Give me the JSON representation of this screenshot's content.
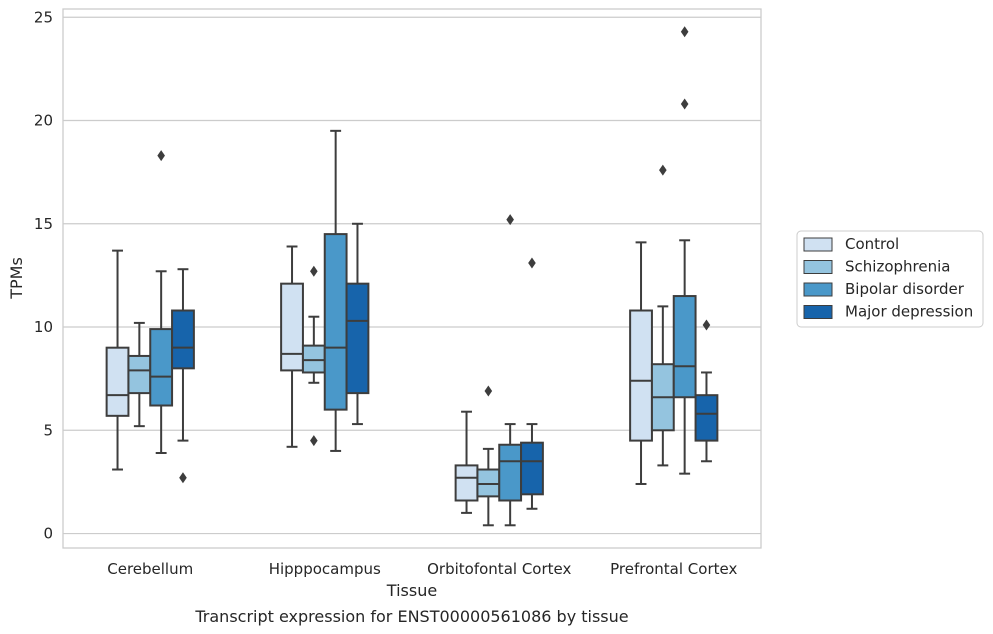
{
  "caption": "Transcript expression for ENST00000561086 by tissue",
  "chart_data": {
    "type": "box",
    "xlabel": "Tissue",
    "ylabel": "TPMs",
    "ylim": [
      -0.7,
      25.4
    ],
    "yticks": [
      0,
      5,
      10,
      15,
      20,
      25
    ],
    "grid": "horizontal",
    "legend_position": "right",
    "categories": [
      "Cerebellum",
      "Hipppocampus",
      "Orbitofontal Cortex",
      "Prefrontal Cortex"
    ],
    "series": [
      {
        "name": "Control",
        "color": "#d0e1f2",
        "boxes": [
          {
            "whisker_low": 3.1,
            "q1": 5.7,
            "median": 6.7,
            "q3": 9.0,
            "whisker_high": 13.7,
            "outliers": []
          },
          {
            "whisker_low": 4.2,
            "q1": 7.9,
            "median": 8.7,
            "q3": 12.1,
            "whisker_high": 13.9,
            "outliers": []
          },
          {
            "whisker_low": 1.0,
            "q1": 1.6,
            "median": 2.7,
            "q3": 3.3,
            "whisker_high": 5.9,
            "outliers": []
          },
          {
            "whisker_low": 2.4,
            "q1": 4.5,
            "median": 7.4,
            "q3": 10.8,
            "whisker_high": 14.1,
            "outliers": []
          }
        ]
      },
      {
        "name": "Schizophrenia",
        "color": "#94c4df",
        "boxes": [
          {
            "whisker_low": 5.2,
            "q1": 6.8,
            "median": 7.9,
            "q3": 8.6,
            "whisker_high": 10.2,
            "outliers": []
          },
          {
            "whisker_low": 7.3,
            "q1": 7.8,
            "median": 8.4,
            "q3": 9.1,
            "whisker_high": 10.5,
            "outliers": [
              12.7,
              4.5
            ]
          },
          {
            "whisker_low": 0.4,
            "q1": 1.8,
            "median": 2.4,
            "q3": 3.1,
            "whisker_high": 4.1,
            "outliers": [
              6.9
            ]
          },
          {
            "whisker_low": 3.3,
            "q1": 5.0,
            "median": 6.6,
            "q3": 8.2,
            "whisker_high": 11.0,
            "outliers": [
              17.6
            ]
          }
        ]
      },
      {
        "name": "Bipolar disorder",
        "color": "#4a98c9",
        "boxes": [
          {
            "whisker_low": 3.9,
            "q1": 6.2,
            "median": 7.6,
            "q3": 9.9,
            "whisker_high": 12.7,
            "outliers": [
              18.3
            ]
          },
          {
            "whisker_low": 4.0,
            "q1": 6.0,
            "median": 9.0,
            "q3": 14.5,
            "whisker_high": 19.5,
            "outliers": []
          },
          {
            "whisker_low": 0.4,
            "q1": 1.6,
            "median": 3.5,
            "q3": 4.3,
            "whisker_high": 5.3,
            "outliers": [
              15.2
            ]
          },
          {
            "whisker_low": 2.9,
            "q1": 6.6,
            "median": 8.1,
            "q3": 11.5,
            "whisker_high": 14.2,
            "outliers": [
              20.8,
              24.3
            ]
          }
        ]
      },
      {
        "name": "Major depression",
        "color": "#1764ab",
        "boxes": [
          {
            "whisker_low": 4.5,
            "q1": 8.0,
            "median": 9.0,
            "q3": 10.8,
            "whisker_high": 12.8,
            "outliers": [
              2.7
            ]
          },
          {
            "whisker_low": 5.3,
            "q1": 6.8,
            "median": 10.3,
            "q3": 12.1,
            "whisker_high": 15.0,
            "outliers": []
          },
          {
            "whisker_low": 1.2,
            "q1": 1.9,
            "median": 3.5,
            "q3": 4.4,
            "whisker_high": 5.3,
            "outliers": [
              13.1
            ]
          },
          {
            "whisker_low": 3.5,
            "q1": 4.5,
            "median": 5.8,
            "q3": 6.7,
            "whisker_high": 7.8,
            "outliers": [
              10.1
            ]
          }
        ]
      }
    ]
  }
}
